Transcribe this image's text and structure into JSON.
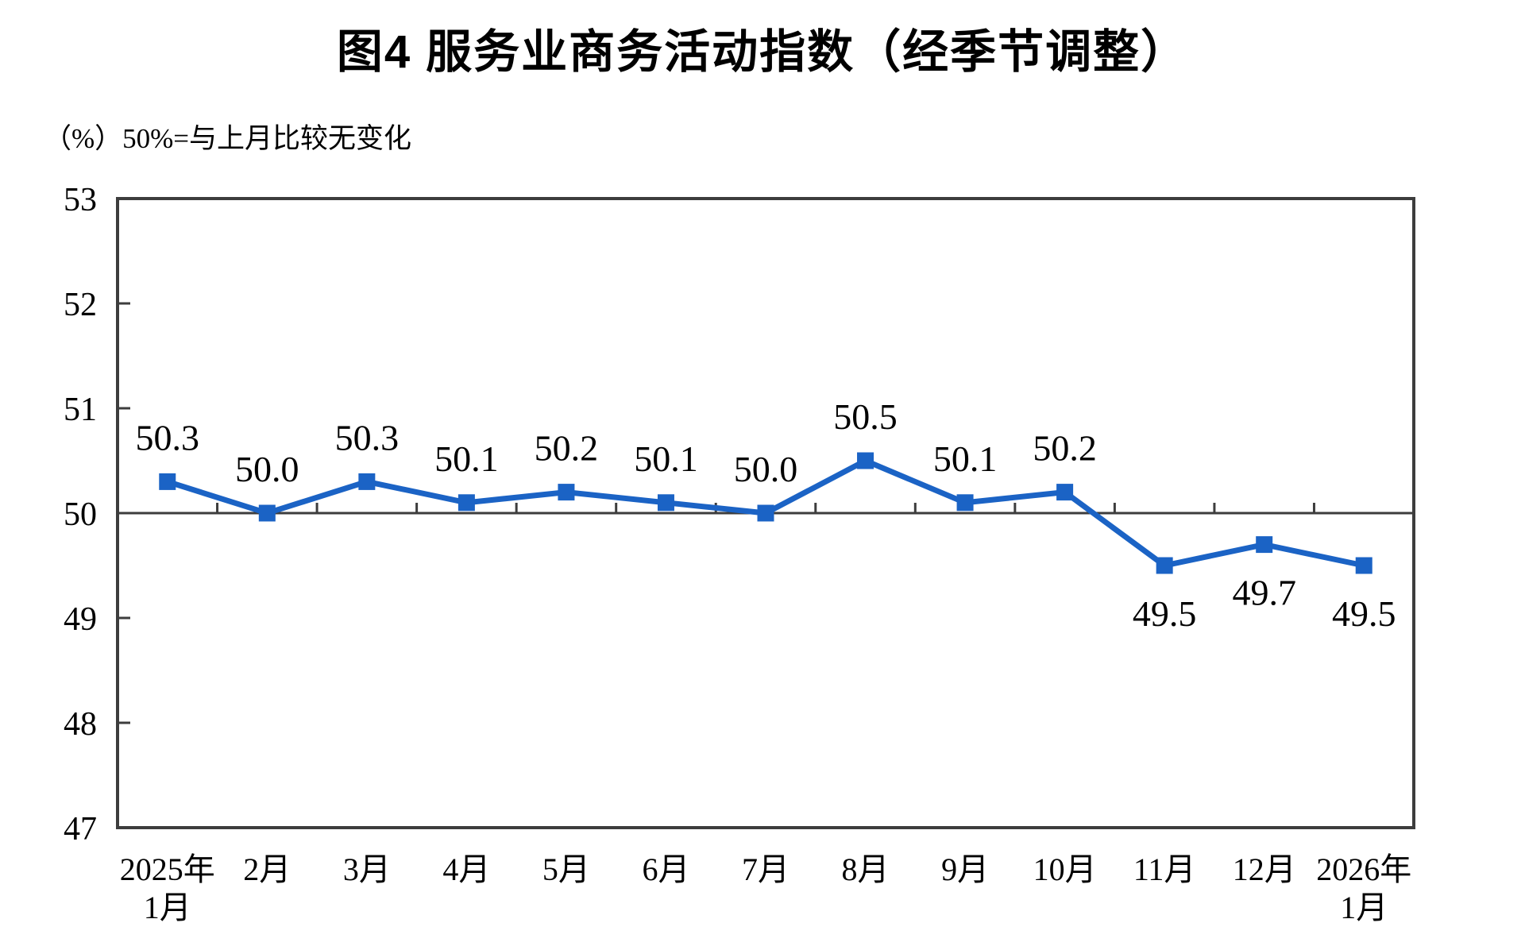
{
  "title": "图4  服务业商务活动指数（经季节调整）",
  "subtitle": "（%）50%=与上月比较无变化",
  "chart_data": {
    "type": "line",
    "title": "图4  服务业商务活动指数（经季节调整）",
    "unit_note": "（%）50%=与上月比较无变化",
    "categories": [
      "2025年1月",
      "2月",
      "3月",
      "4月",
      "5月",
      "6月",
      "7月",
      "8月",
      "9月",
      "10月",
      "11月",
      "12月",
      "2026年1月"
    ],
    "categories_display": [
      [
        "2025年",
        "1月"
      ],
      [
        "2月"
      ],
      [
        "3月"
      ],
      [
        "4月"
      ],
      [
        "5月"
      ],
      [
        "6月"
      ],
      [
        "7月"
      ],
      [
        "8月"
      ],
      [
        "9月"
      ],
      [
        "10月"
      ],
      [
        "11月"
      ],
      [
        "12月"
      ],
      [
        "2026年",
        "1月"
      ]
    ],
    "series": [
      {
        "name": "服务业商务活动指数",
        "values": [
          50.3,
          50.0,
          50.3,
          50.1,
          50.2,
          50.1,
          50.0,
          50.5,
          50.1,
          50.2,
          49.5,
          49.7,
          49.5
        ]
      }
    ],
    "data_labels": [
      "50.3",
      "50.0",
      "50.3",
      "50.1",
      "50.2",
      "50.1",
      "50.0",
      "50.5",
      "50.1",
      "50.2",
      "49.5",
      "49.7",
      "49.5"
    ],
    "ylim": [
      47,
      53
    ],
    "yticks": [
      47,
      48,
      49,
      50,
      51,
      52,
      53
    ],
    "reference_line": 50,
    "grid": false,
    "legend": "none",
    "marker": "square",
    "colors": {
      "line": "#1B63C5",
      "marker": "#1B63C5",
      "axis": "#3D3D3D",
      "text": "#000000"
    }
  }
}
